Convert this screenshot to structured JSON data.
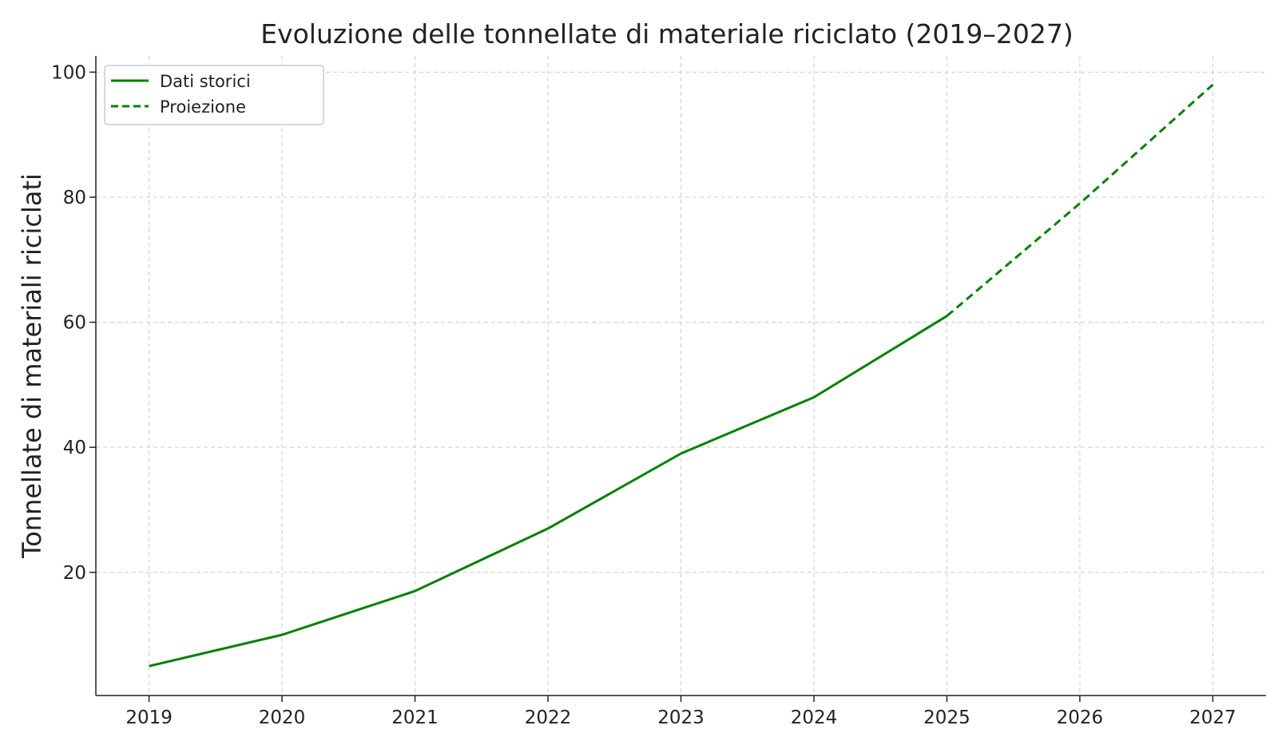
{
  "chart_data": {
    "type": "line",
    "title": "Evoluzione delle tonnellate di materiale riciclato (2019–2027)",
    "xlabel": "",
    "ylabel": "Tonnellate di materiali riciclati",
    "x": [
      2019,
      2020,
      2021,
      2022,
      2023,
      2024,
      2025,
      2026,
      2027
    ],
    "xlim": [
      2018.6,
      2027.4
    ],
    "ylim": [
      0.3,
      102.6
    ],
    "yticks": [
      20,
      40,
      60,
      80,
      100
    ],
    "grid": true,
    "legend_position": "top-left",
    "series": [
      {
        "name": "Dati storici",
        "style": "solid",
        "color": "#008000",
        "x": [
          2019,
          2020,
          2021,
          2022,
          2023,
          2024,
          2025
        ],
        "values": [
          5,
          10,
          17,
          27,
          39,
          48,
          61
        ]
      },
      {
        "name": "Proiezione",
        "style": "dashed",
        "color": "#008000",
        "x": [
          2025,
          2026,
          2027
        ],
        "values": [
          61,
          79,
          98
        ]
      }
    ]
  }
}
